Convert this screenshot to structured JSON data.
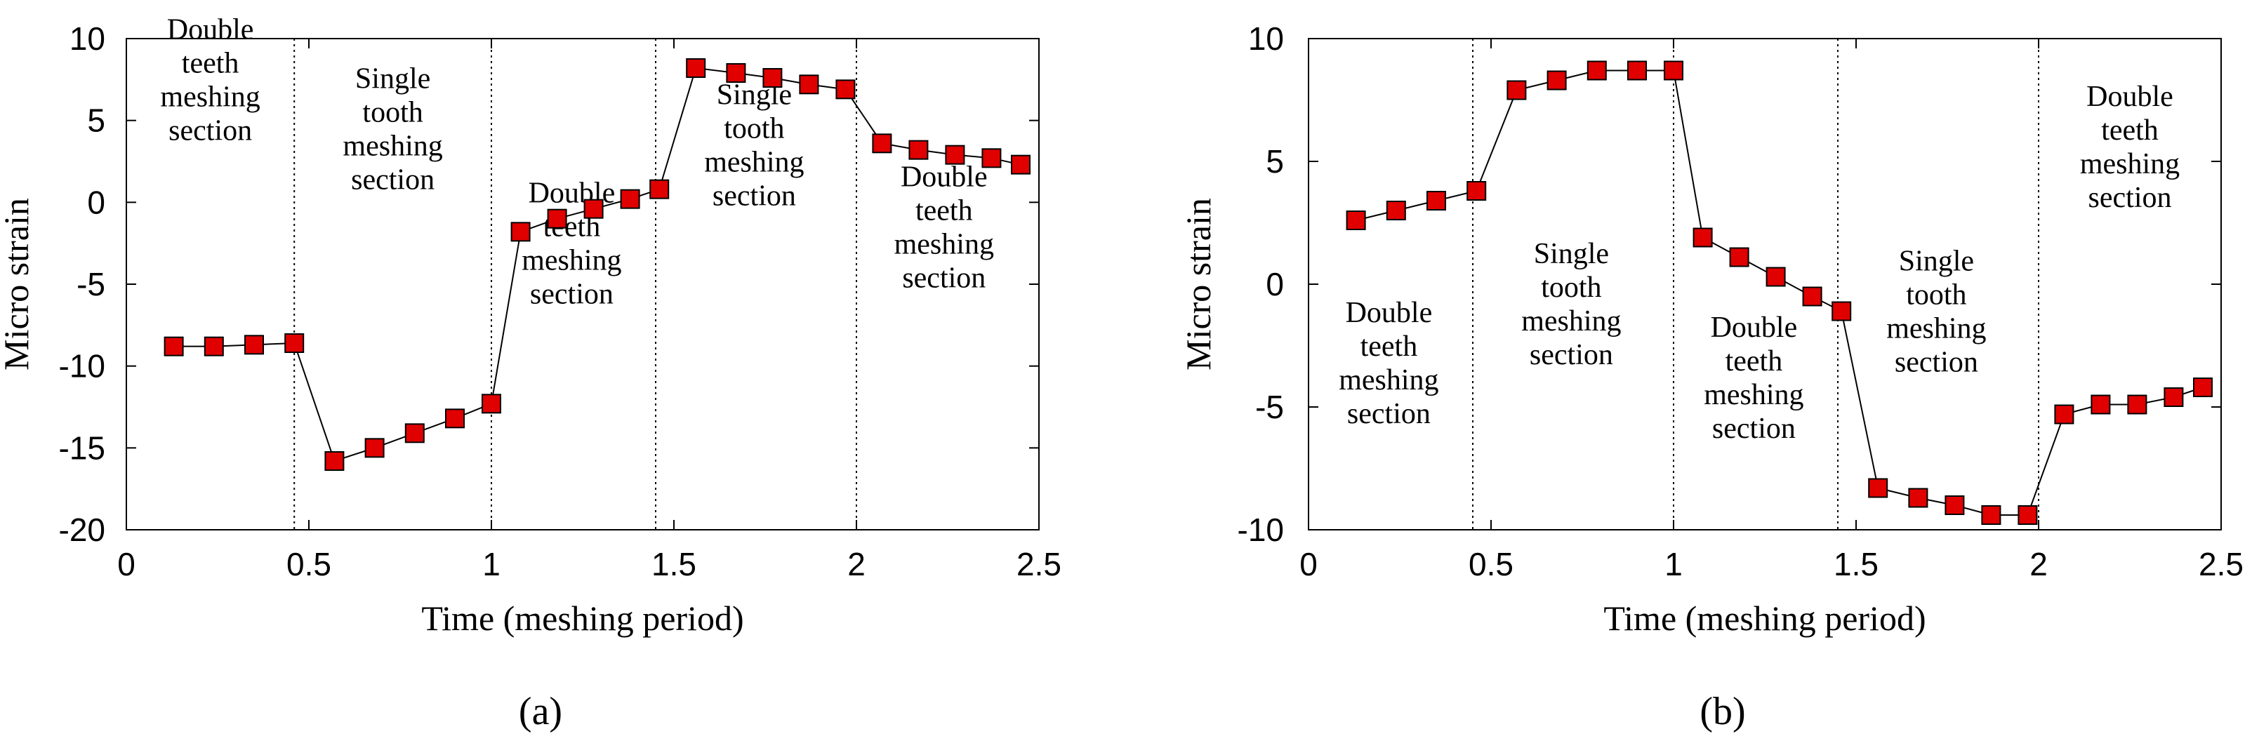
{
  "chart_data": [
    {
      "type": "line",
      "panel_label": "(a)",
      "xlabel": "Time (meshing period)",
      "ylabel": "Micro strain",
      "xlim": [
        0,
        2.5
      ],
      "ylim": [
        -20,
        10
      ],
      "xticks": [
        0,
        0.5,
        1,
        1.5,
        2,
        2.5
      ],
      "xtick_labels": [
        "0",
        "0.5",
        "1",
        "1.5",
        "2",
        "2.5"
      ],
      "yticks": [
        10,
        5,
        0,
        -5,
        -10,
        -15,
        -20
      ],
      "ytick_labels": [
        "10",
        "5",
        "0",
        "-5",
        "-10",
        "-15",
        "-20"
      ],
      "grid": false,
      "marker": "square",
      "marker_color": "#e00000",
      "line_color": "#000000",
      "section_dividers": [
        0.46,
        1.0,
        1.45,
        2.0
      ],
      "section_labels": [
        {
          "lines": [
            "Double",
            "teeth",
            "meshing",
            "section"
          ],
          "x": 0.23,
          "y": 7.5
        },
        {
          "lines": [
            "Single",
            "tooth",
            "meshing",
            "section"
          ],
          "x": 0.73,
          "y": 4.5
        },
        {
          "lines": [
            "Double",
            "teeth",
            "meshing",
            "section"
          ],
          "x": 1.22,
          "y": -2.5
        },
        {
          "lines": [
            "Single",
            "tooth",
            "meshing",
            "section"
          ],
          "x": 1.72,
          "y": 3.5
        },
        {
          "lines": [
            "Double",
            "teeth",
            "meshing",
            "section"
          ],
          "x": 2.24,
          "y": -1.5
        }
      ],
      "series": [
        {
          "x": [
            0.13,
            0.24,
            0.35,
            0.46,
            0.57,
            0.68,
            0.79,
            0.9,
            1.0,
            1.08,
            1.18,
            1.28,
            1.38,
            1.46,
            1.56,
            1.67,
            1.77,
            1.87,
            1.97,
            2.07,
            2.17,
            2.27,
            2.37,
            2.45
          ],
          "y": [
            -8.8,
            -8.8,
            -8.7,
            -8.6,
            -15.8,
            -15.0,
            -14.1,
            -13.2,
            -12.3,
            -1.8,
            -1.0,
            -0.4,
            0.2,
            0.8,
            8.2,
            7.9,
            7.6,
            7.2,
            6.9,
            3.6,
            3.2,
            2.9,
            2.7,
            2.3
          ]
        }
      ]
    },
    {
      "type": "line",
      "panel_label": "(b)",
      "xlabel": "Time (meshing period)",
      "ylabel": "Micro strain",
      "xlim": [
        0,
        2.5
      ],
      "ylim": [
        -10,
        10
      ],
      "xticks": [
        0,
        0.5,
        1,
        1.5,
        2,
        2.5
      ],
      "xtick_labels": [
        "0",
        "0.5",
        "1",
        "1.5",
        "2",
        "2.5"
      ],
      "yticks": [
        10,
        5,
        0,
        -5,
        -10
      ],
      "ytick_labels": [
        "10",
        "5",
        "0",
        "-5",
        "-10"
      ],
      "grid": false,
      "marker": "square",
      "marker_color": "#e00000",
      "line_color": "#000000",
      "section_dividers": [
        0.45,
        1.0,
        1.45,
        2.0
      ],
      "section_labels": [
        {
          "lines": [
            "Double",
            "teeth",
            "meshing",
            "section"
          ],
          "x": 0.22,
          "y": -3.2
        },
        {
          "lines": [
            "Single",
            "tooth",
            "meshing",
            "section"
          ],
          "x": 0.72,
          "y": -0.8
        },
        {
          "lines": [
            "Double",
            "teeth",
            "meshing",
            "section"
          ],
          "x": 1.22,
          "y": -3.8
        },
        {
          "lines": [
            "Single",
            "tooth",
            "meshing",
            "section"
          ],
          "x": 1.72,
          "y": -1.1
        },
        {
          "lines": [
            "Double",
            "teeth",
            "meshing",
            "section"
          ],
          "x": 2.25,
          "y": 5.6
        }
      ],
      "series": [
        {
          "x": [
            0.13,
            0.24,
            0.35,
            0.46,
            0.57,
            0.68,
            0.79,
            0.9,
            1.0,
            1.08,
            1.18,
            1.28,
            1.38,
            1.46,
            1.56,
            1.67,
            1.77,
            1.87,
            1.97,
            2.07,
            2.17,
            2.27,
            2.37,
            2.45
          ],
          "y": [
            2.6,
            3.0,
            3.4,
            3.8,
            7.9,
            8.3,
            8.7,
            8.7,
            8.7,
            1.9,
            1.1,
            0.3,
            -0.5,
            -1.1,
            -8.3,
            -8.7,
            -9.0,
            -9.4,
            -9.4,
            -5.3,
            -4.9,
            -4.9,
            -4.6,
            -4.2
          ]
        }
      ]
    }
  ]
}
